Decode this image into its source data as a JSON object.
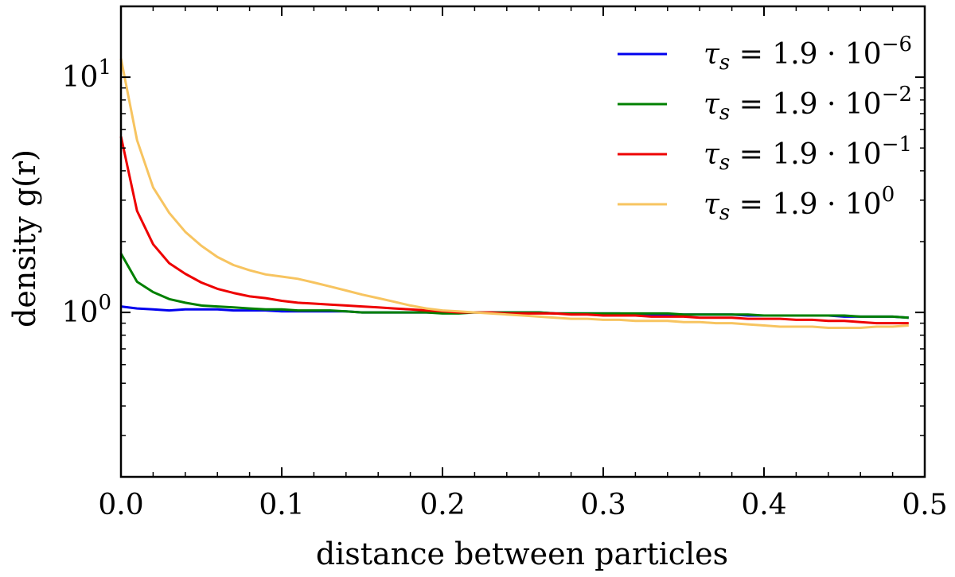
{
  "chart_data": {
    "type": "line",
    "title": "",
    "xlabel": "distance between particles",
    "ylabel": "density g(r)",
    "xlim": [
      0.0,
      0.5
    ],
    "ylim": [
      0.2,
      20
    ],
    "yscale": "log",
    "grid": false,
    "legend_position": "top-right",
    "x_ticks": [
      0.0,
      0.1,
      0.2,
      0.3,
      0.4,
      0.5
    ],
    "x_tick_labels": [
      "0.0",
      "0.1",
      "0.2",
      "0.3",
      "0.4",
      "0.5"
    ],
    "y_major_ticks": [
      {
        "value": 1,
        "base": "10",
        "exp": "0"
      },
      {
        "value": 10,
        "base": "10",
        "exp": "1"
      }
    ],
    "x": [
      0.0,
      0.01,
      0.02,
      0.03,
      0.04,
      0.05,
      0.06,
      0.07,
      0.08,
      0.09,
      0.1,
      0.11,
      0.12,
      0.13,
      0.14,
      0.15,
      0.16,
      0.17,
      0.18,
      0.19,
      0.2,
      0.21,
      0.22,
      0.23,
      0.24,
      0.25,
      0.26,
      0.27,
      0.28,
      0.29,
      0.3,
      0.31,
      0.32,
      0.33,
      0.34,
      0.35,
      0.36,
      0.37,
      0.38,
      0.39,
      0.4,
      0.41,
      0.42,
      0.43,
      0.44,
      0.45,
      0.46,
      0.47,
      0.48,
      0.49
    ],
    "series": [
      {
        "name": "tau_s = 1.9e-6",
        "label_sym": "τ",
        "label_sub": "s",
        "label_eq": " = 1.9 · 10",
        "label_exp": "−6",
        "color": "#0000ee",
        "values": [
          1.06,
          1.04,
          1.03,
          1.02,
          1.03,
          1.03,
          1.03,
          1.02,
          1.02,
          1.02,
          1.01,
          1.01,
          1.01,
          1.01,
          1.01,
          1.0,
          1.0,
          1.0,
          1.0,
          1.0,
          1.0,
          1.0,
          1.0,
          1.0,
          1.0,
          1.0,
          1.0,
          0.99,
          0.99,
          0.99,
          0.99,
          0.99,
          0.98,
          0.98,
          0.98,
          0.98,
          0.98,
          0.98,
          0.98,
          0.97,
          0.97,
          0.97,
          0.97,
          0.97,
          0.97,
          0.96,
          0.96,
          0.96,
          0.96,
          0.95
        ]
      },
      {
        "name": "tau_s = 1.9e-2",
        "label_sym": "τ",
        "label_sub": "s",
        "label_eq": " = 1.9 · 10",
        "label_exp": "−2",
        "color": "#008000",
        "values": [
          1.78,
          1.35,
          1.22,
          1.14,
          1.1,
          1.07,
          1.06,
          1.05,
          1.04,
          1.03,
          1.03,
          1.02,
          1.02,
          1.02,
          1.01,
          1.0,
          1.0,
          1.0,
          1.0,
          1.0,
          0.99,
          0.99,
          1.0,
          1.0,
          1.0,
          1.0,
          1.0,
          0.99,
          0.99,
          0.99,
          0.99,
          0.99,
          0.99,
          0.99,
          0.99,
          0.98,
          0.98,
          0.98,
          0.98,
          0.98,
          0.97,
          0.97,
          0.97,
          0.97,
          0.97,
          0.97,
          0.96,
          0.96,
          0.96,
          0.95
        ]
      },
      {
        "name": "tau_s = 1.9e-1",
        "label_sym": "τ",
        "label_sub": "s",
        "label_eq": " = 1.9 · 10",
        "label_exp": "−1",
        "color": "#ee0000",
        "values": [
          5.6,
          2.7,
          1.95,
          1.62,
          1.46,
          1.34,
          1.26,
          1.21,
          1.17,
          1.15,
          1.12,
          1.1,
          1.09,
          1.08,
          1.07,
          1.06,
          1.05,
          1.04,
          1.03,
          1.02,
          1.01,
          1.0,
          1.0,
          1.0,
          0.99,
          0.99,
          0.99,
          0.99,
          0.98,
          0.98,
          0.97,
          0.97,
          0.97,
          0.96,
          0.96,
          0.96,
          0.95,
          0.95,
          0.95,
          0.94,
          0.94,
          0.94,
          0.93,
          0.93,
          0.92,
          0.92,
          0.91,
          0.9,
          0.9,
          0.9
        ]
      },
      {
        "name": "tau_s = 1.9e0",
        "label_sym": "τ",
        "label_sub": "s",
        "label_eq": " = 1.9 · 10",
        "label_exp": "0",
        "color": "#f7c460",
        "values": [
          12.0,
          5.4,
          3.4,
          2.65,
          2.2,
          1.92,
          1.72,
          1.59,
          1.51,
          1.45,
          1.42,
          1.39,
          1.34,
          1.29,
          1.24,
          1.19,
          1.15,
          1.11,
          1.07,
          1.04,
          1.02,
          1.01,
          1.0,
          0.99,
          0.98,
          0.97,
          0.96,
          0.95,
          0.94,
          0.94,
          0.93,
          0.93,
          0.92,
          0.92,
          0.92,
          0.91,
          0.91,
          0.9,
          0.9,
          0.89,
          0.88,
          0.87,
          0.87,
          0.87,
          0.86,
          0.86,
          0.86,
          0.87,
          0.87,
          0.88
        ]
      }
    ]
  }
}
